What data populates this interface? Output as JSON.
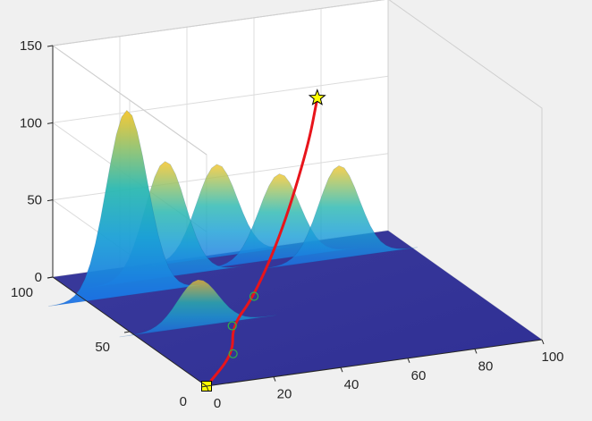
{
  "chart_data": {
    "type": "surface",
    "title": "",
    "xlabel": "",
    "ylabel": "",
    "zlabel": "",
    "xlim": [
      0,
      100
    ],
    "ylim": [
      0,
      100
    ],
    "zlim": [
      0,
      150
    ],
    "x_ticks": [
      "0",
      "20",
      "40",
      "60",
      "80",
      "100"
    ],
    "y_ticks": [
      "0",
      "50",
      "100"
    ],
    "z_ticks": [
      "0",
      "50",
      "100",
      "150"
    ],
    "grid": true,
    "colormap": "parula",
    "peaks": [
      {
        "x": 12,
        "y": 78,
        "height": 120
      },
      {
        "x": 19,
        "y": 47,
        "height": 30
      },
      {
        "x": 28,
        "y": 88,
        "height": 75
      },
      {
        "x": 48,
        "y": 98,
        "height": 60
      },
      {
        "x": 63,
        "y": 90,
        "height": 55
      },
      {
        "x": 78,
        "y": 84,
        "height": 60
      }
    ],
    "path": {
      "color": "#e8141b",
      "points": [
        [
          0,
          0,
          0
        ],
        [
          18,
          22,
          0
        ],
        [
          26,
          40,
          3
        ],
        [
          38,
          52,
          10
        ],
        [
          52,
          64,
          40
        ],
        [
          66,
          78,
          80
        ],
        [
          72,
          85,
          105
        ]
      ],
      "waypoints": [
        [
          18,
          22,
          0
        ],
        [
          26,
          40,
          3
        ],
        [
          38,
          52,
          10
        ]
      ],
      "start": {
        "x": 0,
        "y": 0,
        "z": 0,
        "marker": "square",
        "color": "#ffff00"
      },
      "end": {
        "x": 72,
        "y": 85,
        "z": 105,
        "marker": "star",
        "color": "#ffff00"
      }
    }
  }
}
